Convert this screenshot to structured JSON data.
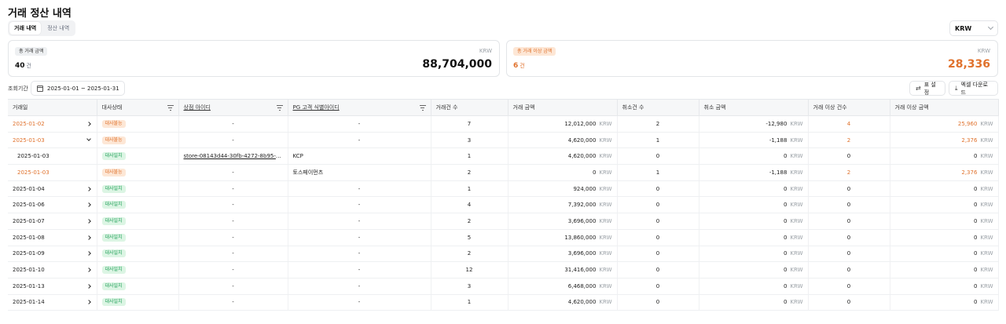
{
  "page": {
    "title": "거래 정산 내역"
  },
  "tabs": [
    {
      "label": "거래 내역",
      "active": true
    },
    {
      "label": "정산 내역",
      "active": false
    }
  ],
  "currency_select": {
    "value": "KRW"
  },
  "summary": {
    "total": {
      "badge": "총 거래 금액",
      "count": "40",
      "count_unit": "건",
      "currency": "KRW",
      "amount": "88,704,000"
    },
    "anomaly": {
      "badge": "총 거래 이상 금액",
      "count": "6",
      "count_unit": "건",
      "currency": "KRW",
      "amount": "28,336"
    }
  },
  "filters": {
    "period_label": "조회기간",
    "date_range": "2025-01-01 ~ 2025-01-31"
  },
  "toolbar": {
    "settings_label": "표 설정",
    "excel_label": "엑셀 다운로드"
  },
  "table": {
    "columns": [
      "거래일",
      "대사상태",
      "상점 아이디",
      "PG 고객 식별아이디",
      "거래건 수",
      "거래 금액",
      "취소건 수",
      "취소 금액",
      "거래 이상 건수",
      "거래 이상 금액"
    ],
    "currency": "KRW",
    "rows": [
      {
        "date": "2025-01-02",
        "expand": "right",
        "status": "대사불능",
        "status_type": "orange",
        "store": "-",
        "pg": "-",
        "tx_count": "7",
        "tx_amount": "12,012,000",
        "cancel_count": "2",
        "cancel_amount": "-12,980",
        "anom_count": "4",
        "anom_amount": "25,960",
        "date_orange": true,
        "sub": false
      },
      {
        "date": "2025-01-03",
        "expand": "down",
        "status": "대사불능",
        "status_type": "orange",
        "store": "-",
        "pg": "-",
        "tx_count": "3",
        "tx_amount": "4,620,000",
        "cancel_count": "1",
        "cancel_amount": "-1,188",
        "anom_count": "2",
        "anom_amount": "2,376",
        "date_orange": true,
        "sub": false
      },
      {
        "date": "2025-01-03",
        "expand": "",
        "status": "대사일치",
        "status_type": "green",
        "store": "store-08143d44-30fb-4272-8b95-bfb...",
        "pg": "KCP",
        "tx_count": "1",
        "tx_amount": "4,620,000",
        "cancel_count": "0",
        "cancel_amount": "0",
        "anom_count": "0",
        "anom_amount": "0",
        "date_orange": false,
        "sub": true
      },
      {
        "date": "2025-01-03",
        "expand": "",
        "status": "대사불능",
        "status_type": "orange",
        "store": "-",
        "pg": "토스페이먼츠",
        "tx_count": "2",
        "tx_amount": "0",
        "cancel_count": "1",
        "cancel_amount": "-1,188",
        "anom_count": "2",
        "anom_amount": "2,376",
        "date_orange": true,
        "sub": true
      },
      {
        "date": "2025-01-04",
        "expand": "right",
        "status": "대사일치",
        "status_type": "green",
        "store": "-",
        "pg": "-",
        "tx_count": "1",
        "tx_amount": "924,000",
        "cancel_count": "0",
        "cancel_amount": "0",
        "anom_count": "0",
        "anom_amount": "0",
        "date_orange": false,
        "sub": false
      },
      {
        "date": "2025-01-06",
        "expand": "right",
        "status": "대사일치",
        "status_type": "green",
        "store": "-",
        "pg": "-",
        "tx_count": "4",
        "tx_amount": "7,392,000",
        "cancel_count": "0",
        "cancel_amount": "0",
        "anom_count": "0",
        "anom_amount": "0",
        "date_orange": false,
        "sub": false
      },
      {
        "date": "2025-01-07",
        "expand": "right",
        "status": "대사일치",
        "status_type": "green",
        "store": "-",
        "pg": "-",
        "tx_count": "2",
        "tx_amount": "3,696,000",
        "cancel_count": "0",
        "cancel_amount": "0",
        "anom_count": "0",
        "anom_amount": "0",
        "date_orange": false,
        "sub": false
      },
      {
        "date": "2025-01-08",
        "expand": "right",
        "status": "대사일치",
        "status_type": "green",
        "store": "-",
        "pg": "-",
        "tx_count": "5",
        "tx_amount": "13,860,000",
        "cancel_count": "0",
        "cancel_amount": "0",
        "anom_count": "0",
        "anom_amount": "0",
        "date_orange": false,
        "sub": false
      },
      {
        "date": "2025-01-09",
        "expand": "right",
        "status": "대사일치",
        "status_type": "green",
        "store": "-",
        "pg": "-",
        "tx_count": "2",
        "tx_amount": "3,696,000",
        "cancel_count": "0",
        "cancel_amount": "0",
        "anom_count": "0",
        "anom_amount": "0",
        "date_orange": false,
        "sub": false
      },
      {
        "date": "2025-01-10",
        "expand": "right",
        "status": "대사일치",
        "status_type": "green",
        "store": "-",
        "pg": "-",
        "tx_count": "12",
        "tx_amount": "31,416,000",
        "cancel_count": "0",
        "cancel_amount": "0",
        "anom_count": "0",
        "anom_amount": "0",
        "date_orange": false,
        "sub": false
      },
      {
        "date": "2025-01-13",
        "expand": "right",
        "status": "대사일치",
        "status_type": "green",
        "store": "-",
        "pg": "-",
        "tx_count": "3",
        "tx_amount": "6,468,000",
        "cancel_count": "0",
        "cancel_amount": "0",
        "anom_count": "0",
        "anom_amount": "0",
        "date_orange": false,
        "sub": false
      },
      {
        "date": "2025-01-14",
        "expand": "right",
        "status": "대사일치",
        "status_type": "green",
        "store": "-",
        "pg": "-",
        "tx_count": "1",
        "tx_amount": "4,620,000",
        "cancel_count": "0",
        "cancel_amount": "0",
        "anom_count": "0",
        "anom_amount": "0",
        "date_orange": false,
        "sub": false
      }
    ]
  }
}
